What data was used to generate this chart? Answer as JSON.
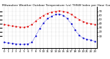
{
  "title": "Milwaukee Weather Outdoor Temperature (vs) THSW Index per Hour (Last 24 Hours)",
  "hours": [
    0,
    1,
    2,
    3,
    4,
    5,
    6,
    7,
    8,
    9,
    10,
    11,
    12,
    13,
    14,
    15,
    16,
    17,
    18,
    19,
    20,
    21,
    22,
    23
  ],
  "temp": [
    38,
    36,
    34,
    33,
    32,
    31,
    33,
    38,
    46,
    54,
    60,
    65,
    68,
    70,
    71,
    70,
    67,
    62,
    56,
    50,
    45,
    42,
    40,
    38
  ],
  "thsw": [
    -5,
    -7,
    -8,
    -9,
    -10,
    -10,
    -9,
    -5,
    10,
    28,
    42,
    52,
    58,
    62,
    63,
    60,
    52,
    40,
    25,
    12,
    5,
    2,
    0,
    -3
  ],
  "temp_color": "#dd0000",
  "thsw_color": "#0000cc",
  "bg_color": "#ffffff",
  "grid_color": "#aaaaaa",
  "ylim": [
    -20,
    80
  ],
  "yticks_right": [
    10,
    20,
    30,
    40,
    50,
    60,
    70
  ],
  "title_fontsize": 3.2,
  "tick_fontsize": 2.8
}
